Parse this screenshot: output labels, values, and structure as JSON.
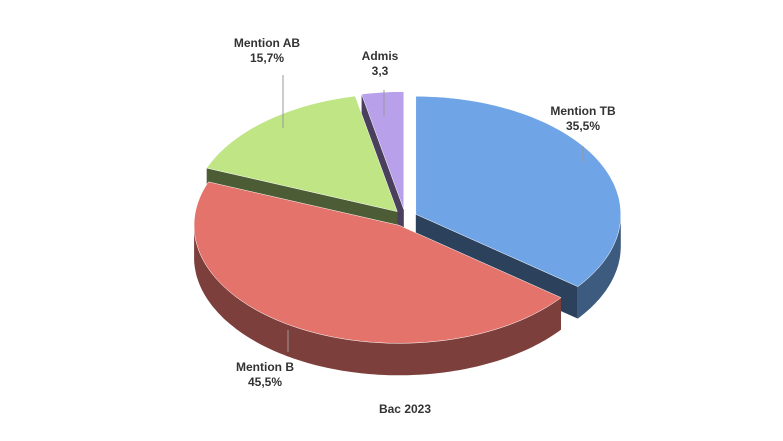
{
  "chart_data": {
    "type": "pie",
    "title": "Bac 2023",
    "categories": [
      "Mention TB",
      "Mention B",
      "Mention AB",
      "Admis"
    ],
    "values": [
      35.5,
      45.5,
      15.7,
      3.3
    ],
    "value_labels": [
      "35,5%",
      "45,5%",
      "15,7%",
      "3,3"
    ],
    "colors": [
      "#6fa4e6",
      "#e4736b",
      "#bfe585",
      "#b9a0ea"
    ]
  }
}
